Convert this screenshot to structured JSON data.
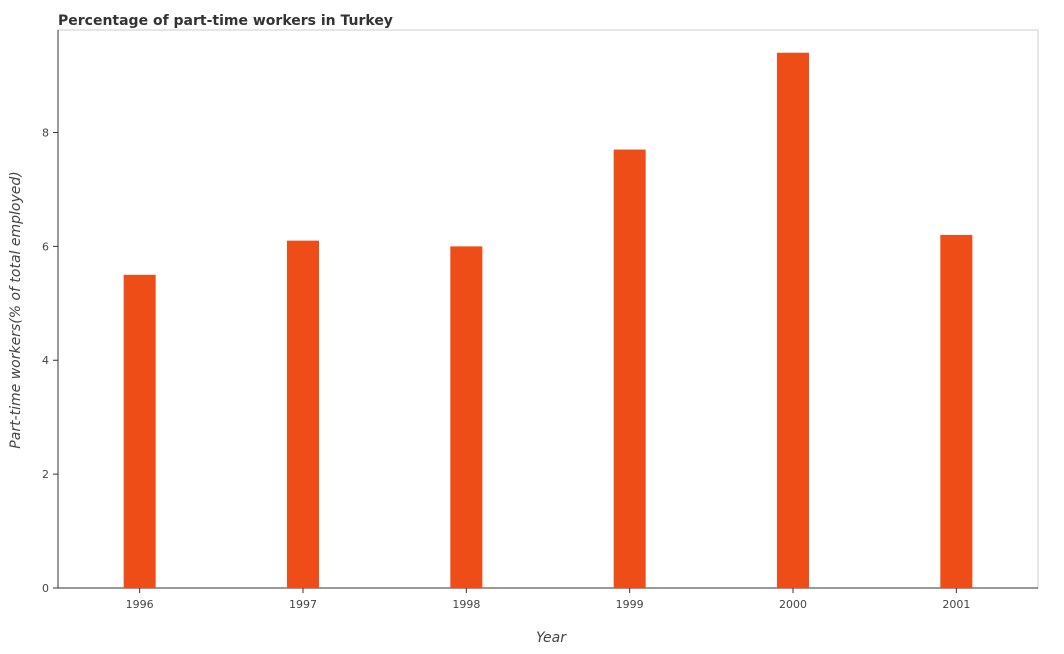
{
  "chart_data": {
    "type": "bar",
    "title": "Percentage of part-time workers in Turkey",
    "xlabel": "Year",
    "ylabel": "Part-time workers(% of total employed)",
    "categories": [
      "1996",
      "1997",
      "1998",
      "1999",
      "2000",
      "2001"
    ],
    "values": [
      5.5,
      6.1,
      6.0,
      7.7,
      9.4,
      6.2
    ],
    "ylim": [
      0,
      9.8
    ],
    "yticks": [
      0,
      2,
      4,
      6,
      8
    ],
    "grid": false,
    "legend": "none",
    "bar_color": "#ef4d17"
  }
}
